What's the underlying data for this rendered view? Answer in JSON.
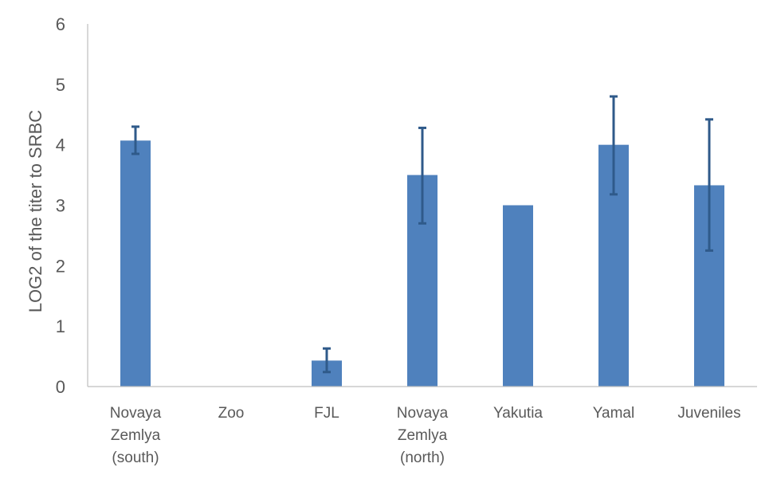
{
  "chart_data": {
    "type": "bar",
    "title": "",
    "xlabel": "",
    "ylabel": "LOG2 of the titer to SRBC",
    "ylim": [
      0,
      6
    ],
    "yticks": [
      0,
      1,
      2,
      3,
      4,
      5,
      6
    ],
    "grid": false,
    "legend": "none",
    "bar_color": "#4F81BD",
    "error_color": "#2F5A8A",
    "categories": [
      [
        "Novaya",
        "Zemlya",
        "(south)"
      ],
      [
        "Zoo"
      ],
      [
        "FJL"
      ],
      [
        "Novaya",
        "Zemlya",
        "(north)"
      ],
      [
        "Yakutia"
      ],
      [
        "Yamal"
      ],
      [
        "Juveniles"
      ]
    ],
    "values": [
      4.07,
      0,
      0.43,
      3.5,
      3.0,
      4.0,
      3.33
    ],
    "error_low": [
      3.85,
      null,
      0.24,
      2.7,
      null,
      3.18,
      2.25
    ],
    "error_high": [
      4.3,
      null,
      0.63,
      4.28,
      null,
      4.8,
      4.42
    ]
  }
}
